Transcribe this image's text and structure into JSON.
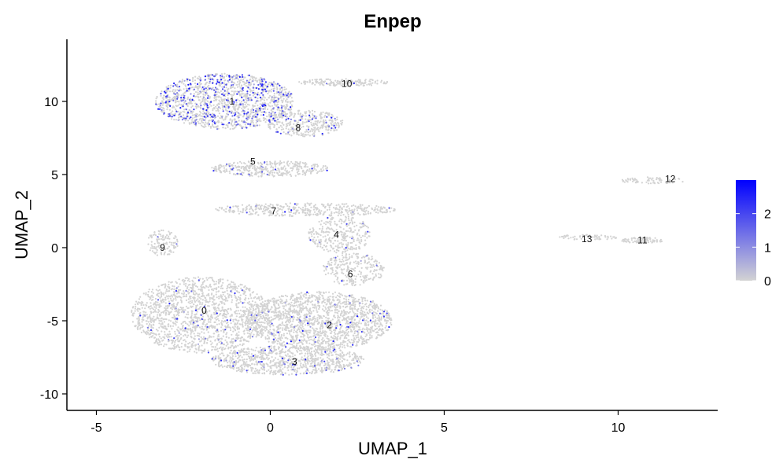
{
  "chart_data": {
    "type": "scatter",
    "title": "Enpep",
    "xlabel": "UMAP_1",
    "ylabel": "UMAP_2",
    "xlim": [
      -6.0,
      13.0
    ],
    "ylim": [
      -11.0,
      14.0
    ],
    "x_ticks": [
      -5,
      0,
      5,
      10
    ],
    "y_ticks": [
      -10,
      -5,
      0,
      5,
      10
    ],
    "grid": false,
    "color_scale": {
      "low_color": "#d3d3d3",
      "high_color": "#0000ff",
      "min": 0,
      "max": 3,
      "ticks": [
        0,
        1,
        2
      ],
      "legend_position": "right"
    },
    "cluster_labels": [
      {
        "label": "0",
        "x": -1.9,
        "y": -4.3
      },
      {
        "label": "1",
        "x": -1.1,
        "y": 10.0
      },
      {
        "label": "2",
        "x": 1.7,
        "y": -5.3
      },
      {
        "label": "3",
        "x": 0.7,
        "y": -7.8
      },
      {
        "label": "4",
        "x": 1.9,
        "y": 0.9
      },
      {
        "label": "5",
        "x": -0.5,
        "y": 5.9
      },
      {
        "label": "6",
        "x": 2.3,
        "y": -1.8
      },
      {
        "label": "7",
        "x": 0.1,
        "y": 2.5
      },
      {
        "label": "8",
        "x": 0.8,
        "y": 8.2
      },
      {
        "label": "9",
        "x": -3.1,
        "y": 0.0
      },
      {
        "label": "10",
        "x": 2.2,
        "y": 11.2
      },
      {
        "label": "11",
        "x": 10.7,
        "y": 0.5
      },
      {
        "label": "12",
        "x": 11.5,
        "y": 4.7
      },
      {
        "label": "13",
        "x": 9.1,
        "y": 0.6
      }
    ],
    "regions": [
      {
        "cluster": "1",
        "cx": -1.3,
        "cy": 10.0,
        "rx": 2.0,
        "ry": 1.9,
        "n": 1500,
        "pos_frac": 0.22
      },
      {
        "cluster": "8",
        "cx": 1.0,
        "cy": 8.5,
        "rx": 1.1,
        "ry": 0.9,
        "n": 350,
        "pos_frac": 0.06
      },
      {
        "cluster": "10",
        "cx": 2.1,
        "cy": 11.3,
        "rx": 1.3,
        "ry": 0.25,
        "n": 160,
        "pos_frac": 0.02
      },
      {
        "cluster": "5",
        "cx": 0.0,
        "cy": 5.4,
        "rx": 1.7,
        "ry": 0.55,
        "n": 380,
        "pos_frac": 0.05
      },
      {
        "cluster": "7",
        "cx": 1.0,
        "cy": 2.6,
        "rx": 2.6,
        "ry": 0.45,
        "n": 420,
        "pos_frac": 0.02
      },
      {
        "cluster": "4",
        "cx": 2.0,
        "cy": 0.9,
        "rx": 0.9,
        "ry": 1.3,
        "n": 300,
        "pos_frac": 0.02
      },
      {
        "cluster": "6",
        "cx": 2.4,
        "cy": -1.5,
        "rx": 0.9,
        "ry": 1.1,
        "n": 260,
        "pos_frac": 0.02
      },
      {
        "cluster": "9",
        "cx": -3.1,
        "cy": 0.3,
        "rx": 0.45,
        "ry": 0.9,
        "n": 120,
        "pos_frac": 0.02
      },
      {
        "cluster": "0",
        "cx": -2.0,
        "cy": -4.6,
        "rx": 2.0,
        "ry": 2.6,
        "n": 1600,
        "pos_frac": 0.03
      },
      {
        "cluster": "2",
        "cx": 1.4,
        "cy": -5.0,
        "rx": 2.1,
        "ry": 2.0,
        "n": 1700,
        "pos_frac": 0.03
      },
      {
        "cluster": "3",
        "cx": 0.5,
        "cy": -7.7,
        "rx": 2.2,
        "ry": 1.0,
        "n": 900,
        "pos_frac": 0.04
      },
      {
        "cluster": "12",
        "cx": 11.0,
        "cy": 4.6,
        "rx": 0.95,
        "ry": 0.22,
        "n": 70,
        "pos_frac": 0.0
      },
      {
        "cluster": "11",
        "cx": 10.7,
        "cy": 0.5,
        "rx": 0.6,
        "ry": 0.2,
        "n": 80,
        "pos_frac": 0.0
      },
      {
        "cluster": "13",
        "cx": 9.1,
        "cy": 0.7,
        "rx": 0.9,
        "ry": 0.18,
        "n": 60,
        "pos_frac": 0.0
      }
    ]
  }
}
